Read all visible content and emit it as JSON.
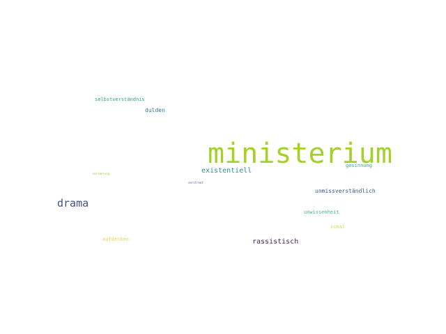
{
  "wordcloud": {
    "words": [
      {
        "id": "ministerium",
        "text": "ministerium",
        "color": "#a2d12a"
      },
      {
        "id": "drama",
        "text": "drama",
        "color": "#3f4f8d"
      },
      {
        "id": "existentiell",
        "text": "existentiell",
        "color": "#2c8c91"
      },
      {
        "id": "rassistisch",
        "text": "rassistisch",
        "color": "#461c5d"
      },
      {
        "id": "unmiss",
        "text": "unmissverständlich",
        "color": "#3e5b8f"
      },
      {
        "id": "dulden",
        "text": "dulden",
        "color": "#2d7598"
      },
      {
        "id": "selbst",
        "text": "selbstverständnis",
        "color": "#2aa38a"
      },
      {
        "id": "gesinnung",
        "text": "gesinnung",
        "color": "#2fb08b"
      },
      {
        "id": "unwissenheit",
        "text": "unwissenheit",
        "color": "#3cbc7d"
      },
      {
        "id": "aufdecken",
        "text": "aufdecken",
        "color": "#e9d63c"
      },
      {
        "id": "schal",
        "text": "schal",
        "color": "#d6df37"
      },
      {
        "id": "verzehrung",
        "text": "verzehrung",
        "color": "#8ccc3e"
      },
      {
        "id": "verstreut",
        "text": "verstreut",
        "color": "#3b5692"
      }
    ]
  }
}
